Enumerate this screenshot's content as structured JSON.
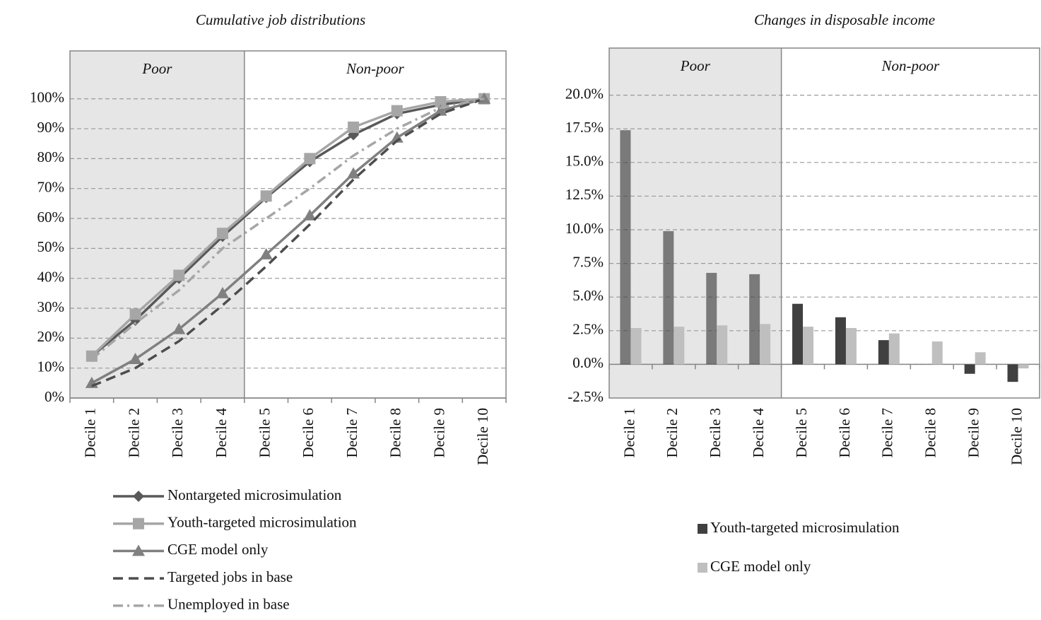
{
  "chart_data": [
    {
      "type": "line",
      "title": "Cumulative job distributions",
      "annotations": [
        "Poor",
        "Non-poor"
      ],
      "categories": [
        "Decile 1",
        "Decile 2",
        "Decile 3",
        "Decile 4",
        "Decile 5",
        "Decile 6",
        "Decile 7",
        "Decile 8",
        "Decile 9",
        "Decile 10"
      ],
      "series": [
        {
          "name": "Nontargeted microsimulation",
          "color": "#595959",
          "marker": "diamond",
          "dash": "solid",
          "values": [
            14,
            26,
            40,
            54,
            67,
            79,
            88,
            95,
            98,
            100
          ]
        },
        {
          "name": "Youth-targeted microsimulation",
          "color": "#a6a6a6",
          "marker": "square",
          "dash": "solid",
          "values": [
            14,
            28,
            41,
            55,
            67.5,
            80,
            90.5,
            96,
            99,
            100
          ]
        },
        {
          "name": "CGE model only",
          "color": "#808080",
          "marker": "triangle",
          "dash": "solid",
          "values": [
            5,
            13,
            23,
            35,
            48,
            61,
            75,
            87,
            96,
            100
          ]
        },
        {
          "name": "Targeted jobs in base",
          "color": "#4d4d4d",
          "marker": "none",
          "dash": "dashed",
          "values": [
            4,
            10,
            19,
            31,
            44,
            58,
            73,
            86,
            95,
            100
          ]
        },
        {
          "name": "Unemployed in base",
          "color": "#a6a6a6",
          "marker": "none",
          "dash": "dashdot",
          "values": [
            13,
            25,
            36,
            50,
            60,
            70,
            81,
            90,
            97,
            100
          ]
        }
      ],
      "ylim": [
        0,
        116
      ],
      "yticks": [
        {
          "value": 0,
          "label": "0%"
        },
        {
          "value": 10,
          "label": "10%"
        },
        {
          "value": 20,
          "label": "20%"
        },
        {
          "value": 30,
          "label": "30%"
        },
        {
          "value": 40,
          "label": "40%"
        },
        {
          "value": 50,
          "label": "50%"
        },
        {
          "value": 60,
          "label": "60%"
        },
        {
          "value": 70,
          "label": "70%"
        },
        {
          "value": 80,
          "label": "80%"
        },
        {
          "value": 90,
          "label": "90%"
        },
        {
          "value": 100,
          "label": "100%"
        }
      ],
      "grid": true
    },
    {
      "type": "bar",
      "title": "Changes in disposable income",
      "annotations": [
        "Poor",
        "Non-poor"
      ],
      "categories": [
        "Decile 1",
        "Decile 2",
        "Decile 3",
        "Decile 4",
        "Decile 5",
        "Decile 6",
        "Decile 7",
        "Decile 8",
        "Decile 9",
        "Decile 10"
      ],
      "series": [
        {
          "name": "Youth-targeted microsimulation",
          "color": "#404040",
          "values": [
            17.4,
            9.9,
            6.8,
            6.7,
            4.5,
            3.5,
            1.8,
            0,
            -0.7,
            -1.3
          ]
        },
        {
          "name": "CGE model only",
          "color": "#bfbfbf",
          "values": [
            2.7,
            2.8,
            2.9,
            3.0,
            2.8,
            2.7,
            2.3,
            1.7,
            0.9,
            -0.3
          ]
        }
      ],
      "ylim": [
        -2.5,
        23.5
      ],
      "yticks": [
        {
          "value": -2.5,
          "label": "-2.5%"
        },
        {
          "value": 0,
          "label": "0.0%"
        },
        {
          "value": 2.5,
          "label": "2.5%"
        },
        {
          "value": 5,
          "label": "5.0%"
        },
        {
          "value": 7.5,
          "label": "7.5%"
        },
        {
          "value": 10,
          "label": "10.0%"
        },
        {
          "value": 12.5,
          "label": "12.5%"
        },
        {
          "value": 15,
          "label": "15.0%"
        },
        {
          "value": 17.5,
          "label": "17.5%"
        },
        {
          "value": 20,
          "label": "20.0%"
        }
      ],
      "grid": true
    }
  ]
}
